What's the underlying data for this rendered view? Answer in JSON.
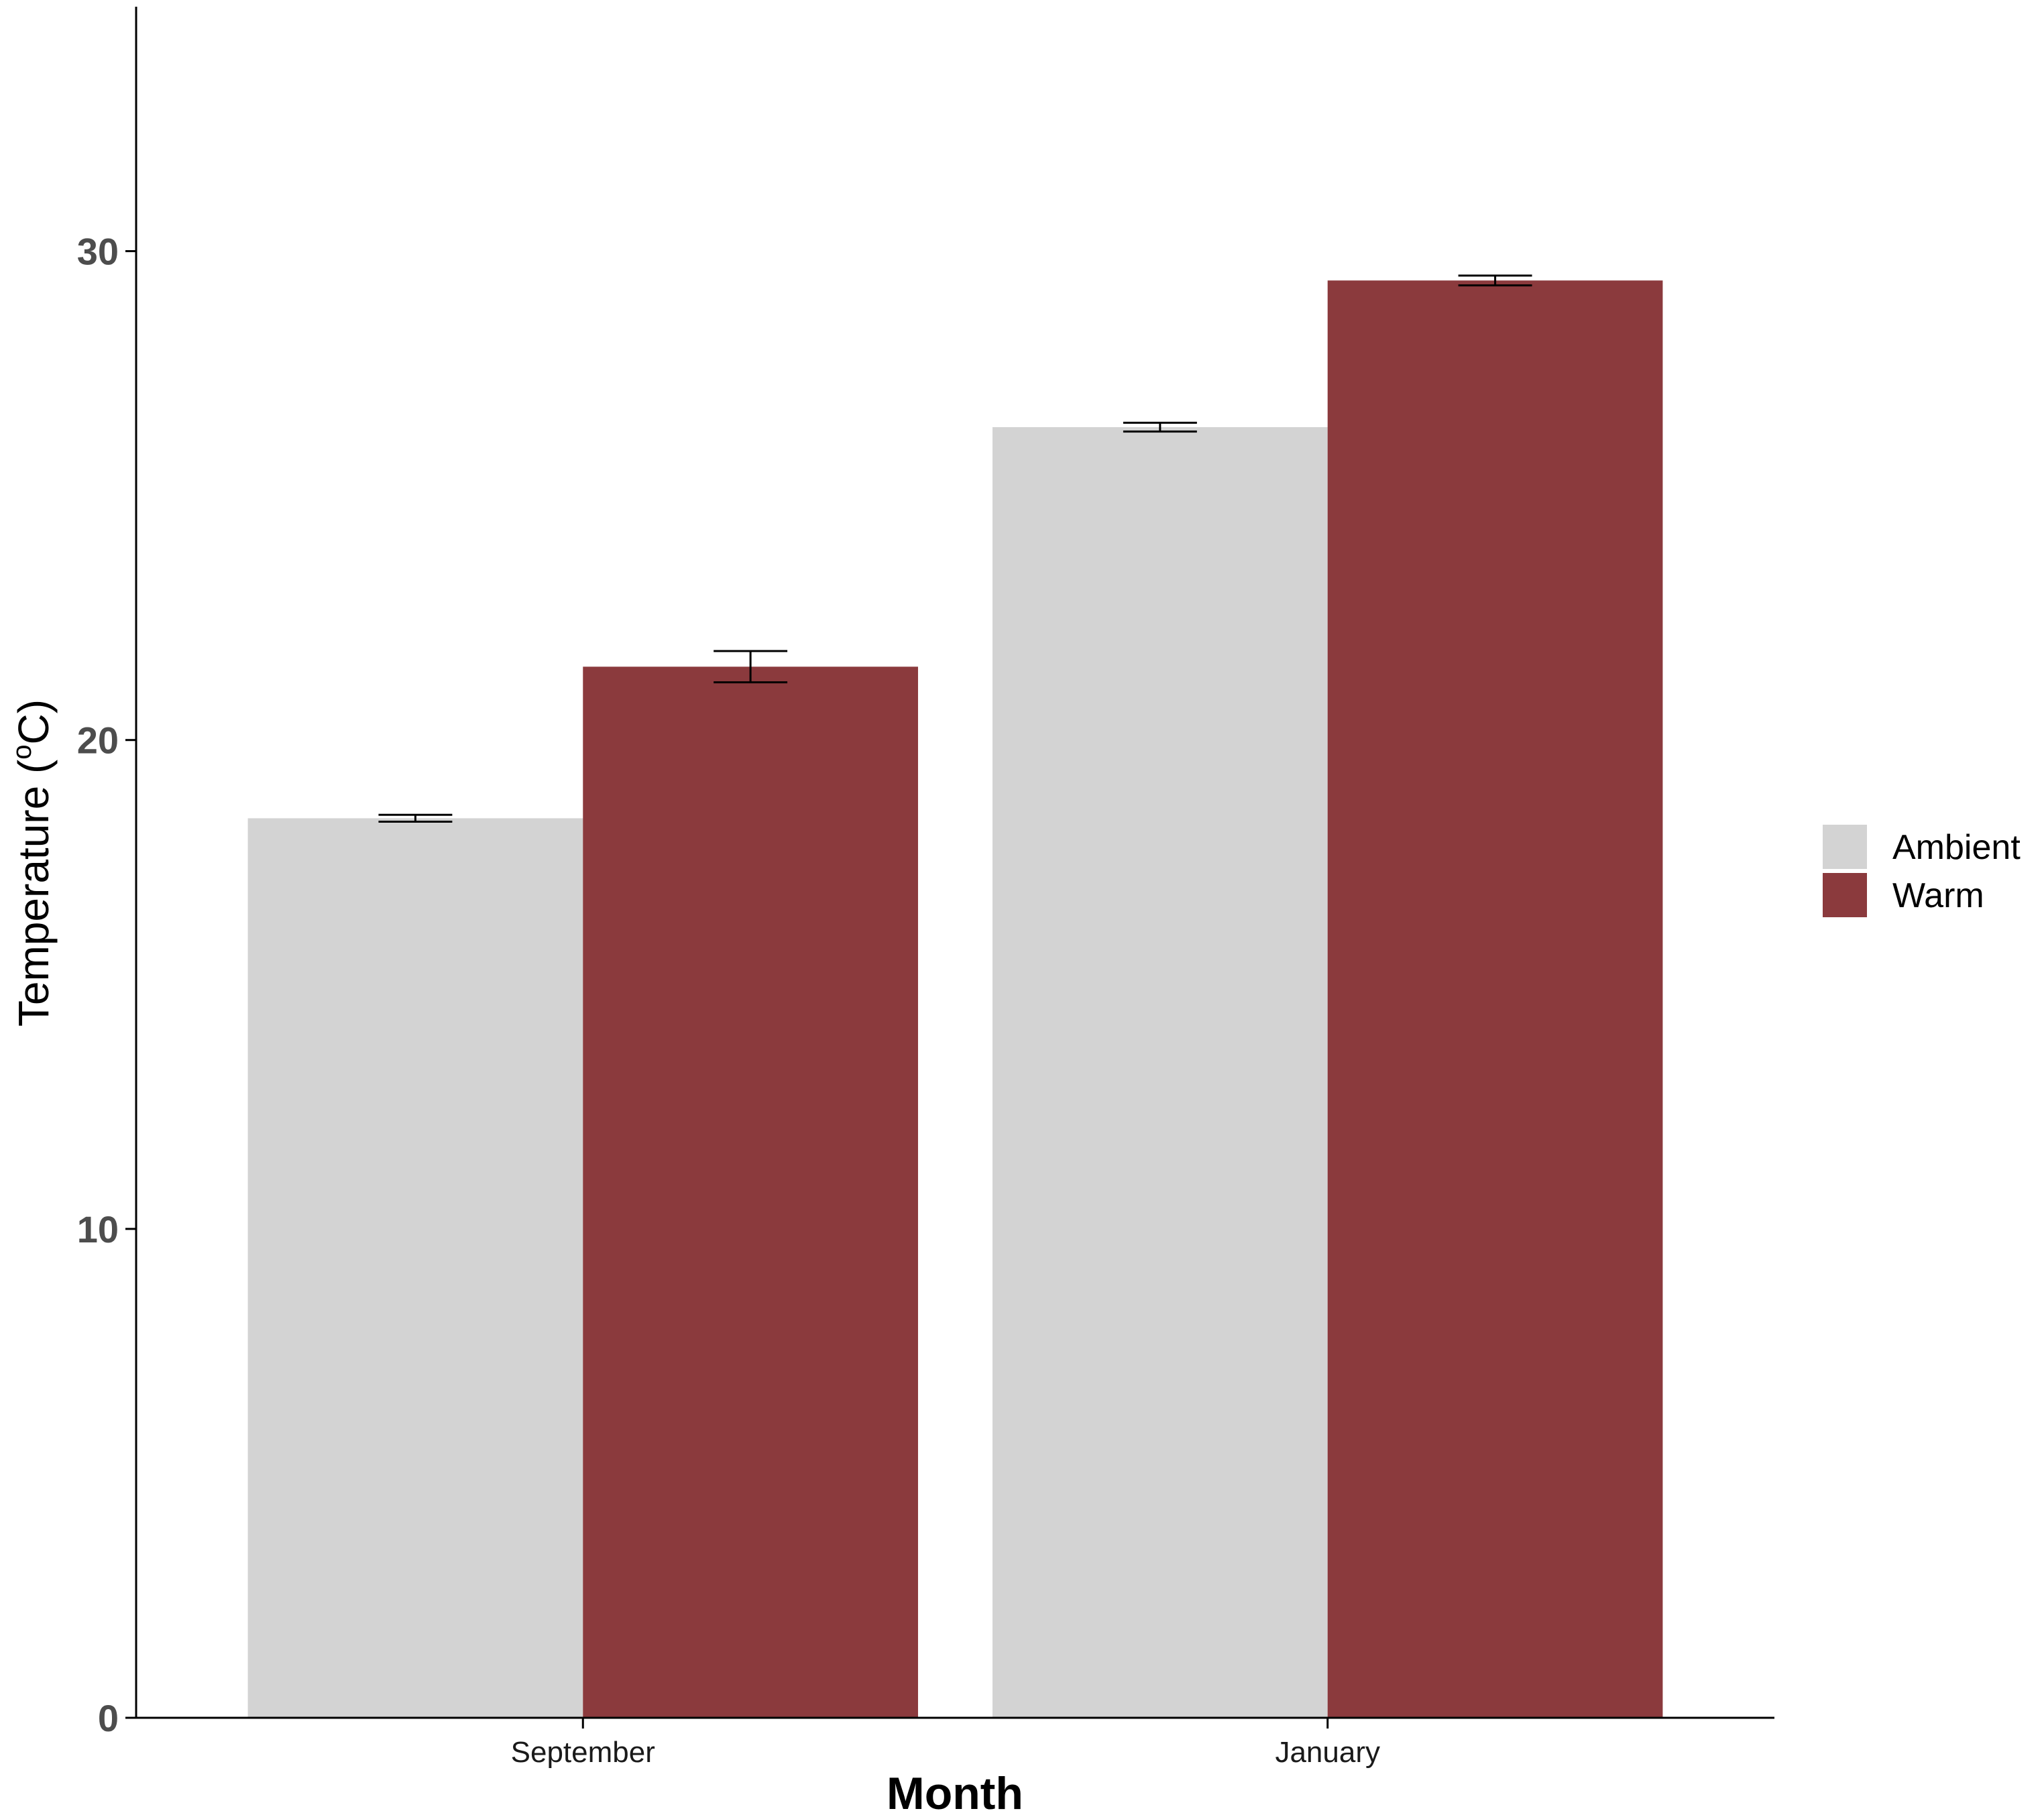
{
  "chart_data": {
    "type": "bar",
    "categories": [
      "September",
      "January"
    ],
    "series": [
      {
        "name": "Ambient",
        "color": "#d3d3d3",
        "values": [
          18.4,
          26.4
        ],
        "error": [
          0.07,
          0.09
        ]
      },
      {
        "name": "Warm",
        "color": "#8b3a3d",
        "values": [
          21.5,
          29.4
        ],
        "error": [
          0.32,
          0.1
        ]
      }
    ],
    "xlabel": "Month",
    "ylabel_main": "Temperature (",
    "ylabel_sup": "o",
    "ylabel_end": "C)",
    "ylim": [
      0,
      35
    ],
    "yticks": [
      0,
      10,
      20,
      30
    ],
    "grid": false,
    "legend_position": "right"
  }
}
